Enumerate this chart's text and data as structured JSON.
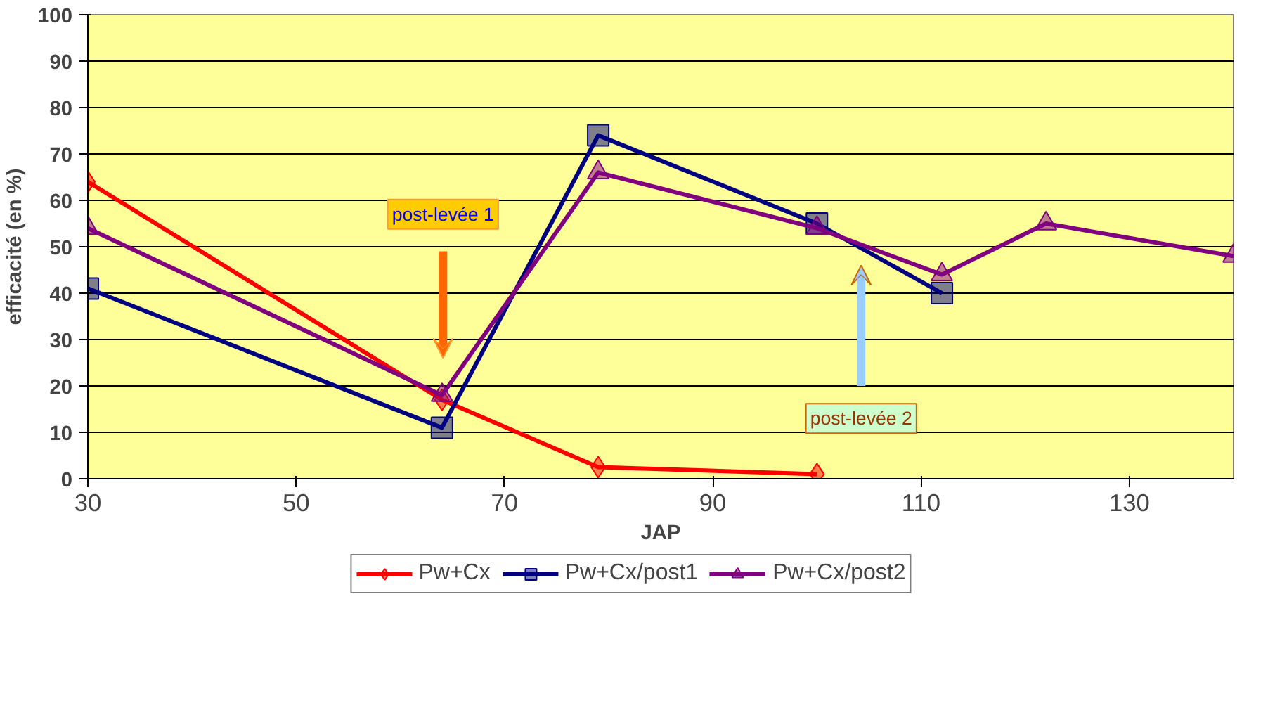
{
  "chart_data": {
    "type": "line",
    "xlabel": "JAP",
    "ylabel": "efficacité (en %)",
    "xlim": [
      30,
      140
    ],
    "xticks": [
      30,
      50,
      70,
      90,
      110,
      130
    ],
    "ylim": [
      0,
      100
    ],
    "yticks": [
      0,
      10,
      20,
      30,
      40,
      50,
      60,
      70,
      80,
      90,
      100
    ],
    "grid": "y",
    "legend": "bottom",
    "line_style": "solid",
    "series": [
      {
        "name": "Pw+Cx",
        "color": "#ff0000",
        "marker": "diamond",
        "x": [
          30,
          64,
          79,
          100
        ],
        "values": [
          64,
          17,
          2.5,
          1
        ]
      },
      {
        "name": "Pw+Cx/post1",
        "color": "#000080",
        "marker": "square",
        "x": [
          30,
          64,
          79,
          100,
          112
        ],
        "values": [
          41,
          11,
          74,
          55,
          40
        ]
      },
      {
        "name": "Pw+Cx/post2",
        "color": "#800080",
        "marker": "triangle",
        "x": [
          30,
          64,
          79,
          100,
          112,
          122,
          140
        ],
        "values": [
          54,
          18,
          66,
          54,
          44,
          55,
          48
        ]
      }
    ],
    "annotations": [
      "post-levée 1",
      "post-levée 2"
    ]
  }
}
